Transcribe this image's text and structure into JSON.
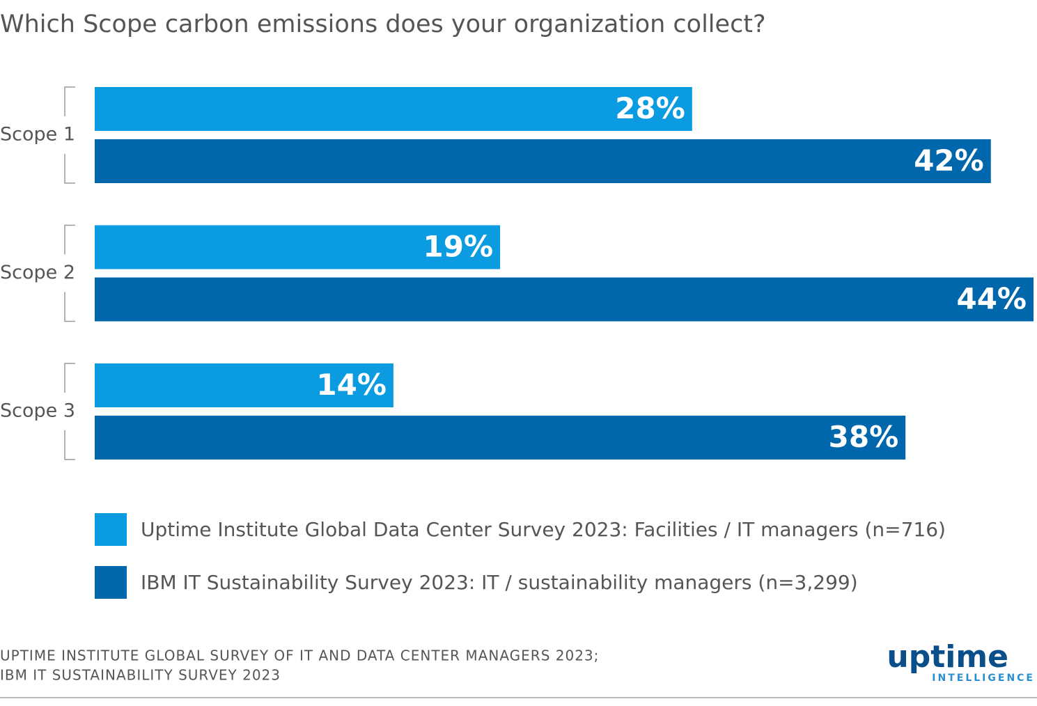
{
  "chart_data": {
    "type": "hbar",
    "title": "Which Scope carbon emissions does your organization collect?",
    "categories": [
      "Scope 1",
      "Scope 2",
      "Scope 3"
    ],
    "series": [
      {
        "name": "Uptime Institute Global Data Center Survey 2023: Facilities / IT managers (n=716)",
        "color": "#0a9be0",
        "values": [
          28,
          19,
          14
        ],
        "value_labels": [
          "28%",
          "19%",
          "14%"
        ]
      },
      {
        "name": "IBM IT Sustainability Survey 2023: IT / sustainability managers (n=3,299)",
        "color": "#0067ac",
        "values": [
          42,
          44,
          38
        ],
        "value_labels": [
          "42%",
          "44%",
          "38%"
        ]
      }
    ],
    "source": [
      "UPTIME INSTITUTE GLOBAL SURVEY OF IT AND DATA CENTER MANAGERS 2023;",
      "IBM IT SUSTAINABILITY SURVEY 2023"
    ],
    "logo": {
      "name": "uptime",
      "tagline": "INTELLIGENCE"
    }
  }
}
